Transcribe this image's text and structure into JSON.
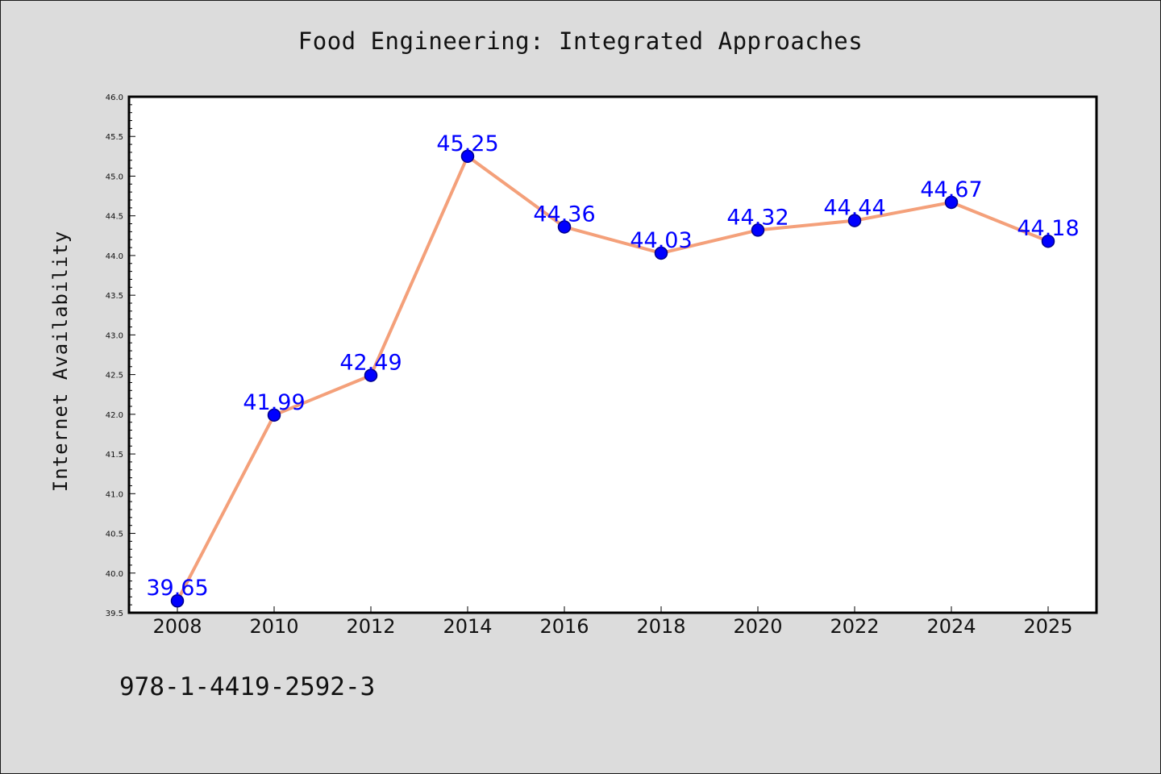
{
  "isbn": "978-1-4419-2592-3",
  "chart_data": {
    "type": "line",
    "title": "Food Engineering: Integrated Approaches",
    "xlabel": "",
    "ylabel": "Internet Availability",
    "categories": [
      "2008",
      "2010",
      "2012",
      "2014",
      "2016",
      "2018",
      "2020",
      "2022",
      "2024",
      "2025"
    ],
    "values": [
      39.65,
      41.99,
      42.49,
      45.25,
      44.36,
      44.03,
      44.32,
      44.44,
      44.67,
      44.18
    ],
    "data_labels": [
      "39.65",
      "41.99",
      "42.49",
      "45.25",
      "44.36",
      "44.03",
      "44.32",
      "44.44",
      "44.67",
      "44.18"
    ],
    "ylim": [
      39.5,
      46.0
    ],
    "yticks": [
      "39.5",
      "40.0",
      "40.5",
      "41.0",
      "41.5",
      "42.0",
      "42.5",
      "43.0",
      "43.5",
      "44.0",
      "44.5",
      "45.0",
      "45.5",
      "46.0"
    ],
    "grid": false,
    "legend": "none",
    "colors": {
      "line": "#f4a07a",
      "marker_fill": "#0000ff",
      "marker_edge": "#00008b",
      "labels": "#0000ff",
      "background": "#dcdcdc",
      "plot_background": "#ffffff"
    }
  }
}
